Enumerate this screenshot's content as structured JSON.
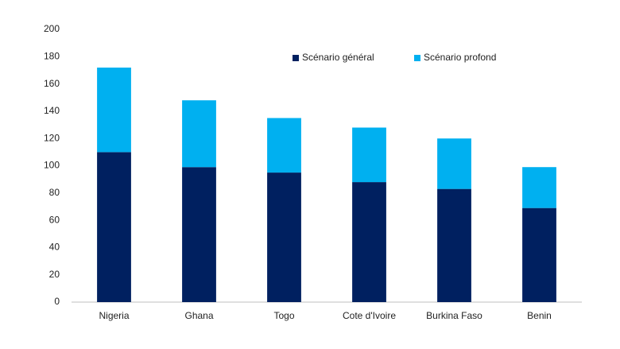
{
  "chart_data": {
    "type": "bar",
    "stacked": true,
    "categories": [
      "Nigeria",
      "Ghana",
      "Togo",
      "Cote d'Ivoire",
      "Burkina Faso",
      "Benin"
    ],
    "series": [
      {
        "name": "Scénario général",
        "color": "#002060",
        "values": [
          110,
          99,
          95,
          88,
          83,
          69
        ]
      },
      {
        "name": "Scénario profond",
        "color": "#00b0f0",
        "values": [
          62,
          49,
          40,
          40,
          37,
          30
        ]
      }
    ],
    "ylim": [
      0,
      200
    ],
    "yticks": [
      0,
      20,
      40,
      60,
      80,
      100,
      120,
      140,
      160,
      180,
      200
    ],
    "grid": false,
    "legend": "top"
  }
}
